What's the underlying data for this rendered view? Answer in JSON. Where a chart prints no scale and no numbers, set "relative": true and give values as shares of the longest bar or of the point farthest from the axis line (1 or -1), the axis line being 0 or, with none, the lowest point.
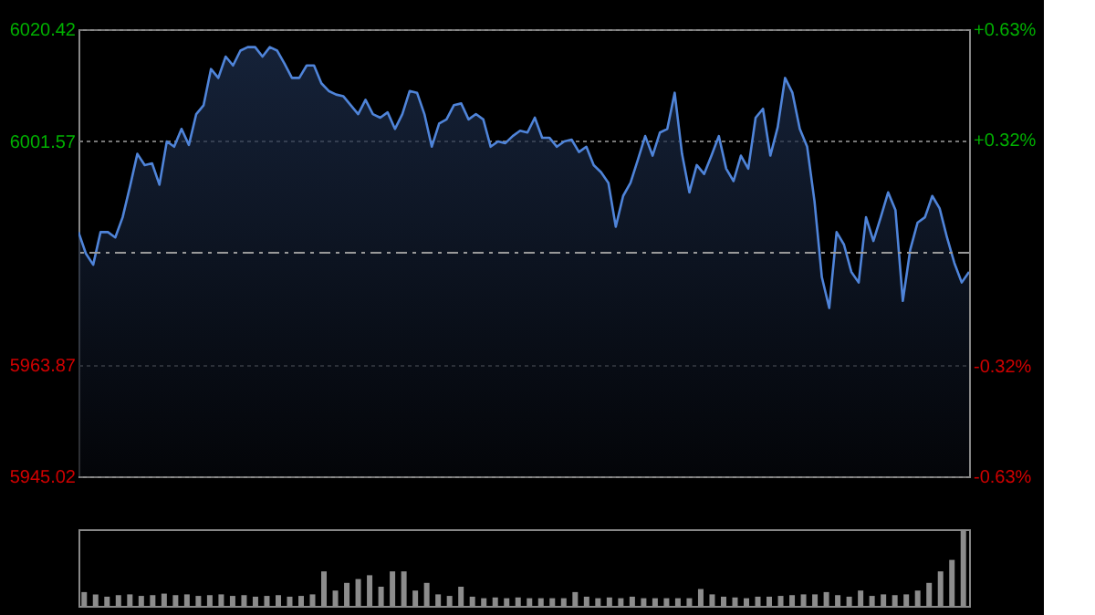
{
  "chart_data": [
    {
      "type": "area",
      "categories": [
        null,
        null,
        null,
        null,
        null,
        null,
        null,
        null,
        null,
        null,
        null,
        null,
        null,
        null,
        null,
        null,
        null,
        null,
        null,
        null,
        null,
        null,
        null,
        null,
        null,
        null,
        null,
        null,
        null,
        null,
        null,
        null,
        null,
        null,
        null,
        null,
        null,
        null,
        null,
        null,
        null,
        null,
        null,
        null,
        null,
        null,
        null,
        null,
        null,
        null,
        null,
        null,
        null,
        null,
        null,
        null,
        null,
        null,
        null,
        null,
        null,
        null,
        null,
        null,
        null,
        null,
        null,
        null,
        null,
        null,
        null,
        null,
        null,
        null,
        null,
        null,
        null,
        null,
        null,
        null,
        null,
        null,
        null,
        null,
        null,
        null,
        null,
        null,
        null,
        null,
        null,
        null,
        null,
        null,
        null,
        null,
        null,
        null,
        null,
        null,
        null,
        null,
        null,
        null,
        null,
        null,
        null,
        null,
        null,
        null,
        null,
        null,
        null,
        null,
        null,
        null,
        null,
        null,
        null,
        null,
        null,
        null
      ],
      "series": [
        {
          "color": "#4f84d9",
          "values": [
            5986.2,
            5982.6,
            5980.7,
            5986.2,
            5986.2,
            5985.3,
            5988.7,
            5993.9,
            5999.4,
            5997.5,
            5997.8,
            5994.2,
            6001.5,
            6000.6,
            6003.6,
            6000.9,
            6006.1,
            6007.6,
            6013.7,
            6012.2,
            6015.8,
            6014.3,
            6016.8,
            6017.4,
            6017.4,
            6015.8,
            6017.4,
            6016.8,
            6014.6,
            6012.2,
            6012.2,
            6014.3,
            6014.3,
            6011.3,
            6010.0,
            6009.4,
            6009.1,
            6007.6,
            6006.1,
            6008.5,
            6006.1,
            6005.5,
            6006.4,
            6003.6,
            6006.1,
            6010.0,
            6009.7,
            6006.1,
            6000.6,
            6004.5,
            6005.2,
            6007.6,
            6007.9,
            6005.2,
            6006.1,
            6005.2,
            6000.6,
            6001.5,
            6001.2,
            6002.4,
            6003.3,
            6003.0,
            6005.5,
            6002.1,
            6002.1,
            6000.6,
            6001.5,
            6001.8,
            5999.7,
            6000.6,
            5997.5,
            5996.3,
            5994.5,
            5987.1,
            5992.3,
            5994.5,
            5998.4,
            6002.4,
            5999.1,
            6003.0,
            6003.6,
            6009.7,
            5999.4,
            5992.9,
            5997.5,
            5996.0,
            5999.1,
            6002.4,
            5996.9,
            5994.8,
            5999.1,
            5996.9,
            6005.5,
            6007.0,
            5999.1,
            6003.9,
            6012.2,
            6009.7,
            6003.6,
            6000.6,
            5991.4,
            5978.6,
            5973.4,
            5986.2,
            5984.1,
            5979.5,
            5977.7,
            5988.7,
            5984.7,
            5988.7,
            5992.9,
            5989.9,
            5974.6,
            5983.2,
            5987.8,
            5988.7,
            5992.3,
            5990.2,
            5985.3,
            5981.0,
            5977.7,
            5979.5
          ]
        }
      ],
      "ylim": [
        5945.02,
        6020.42
      ],
      "yticks": [
        6020.42,
        6001.57,
        5963.87,
        5945.02
      ],
      "y2lim": [
        -0.63,
        0.63
      ],
      "y2ticks": [
        {
          "value": 0.63,
          "label": "+0.63%"
        },
        {
          "value": 0.32,
          "label": "+0.32%"
        },
        {
          "value": -0.32,
          "label": "-0.32%"
        },
        {
          "value": -0.63,
          "label": "-0.63%"
        }
      ],
      "ref_lines": [
        {
          "axis": "y",
          "value": 5982.72,
          "line_style": "dashed"
        }
      ],
      "grid": "y",
      "tick_labels": "y"
    },
    {
      "type": "bar",
      "relative": true,
      "categories": [
        null,
        null,
        null,
        null,
        null,
        null,
        null,
        null,
        null,
        null,
        null,
        null,
        null,
        null,
        null,
        null,
        null,
        null,
        null,
        null,
        null,
        null,
        null,
        null,
        null,
        null,
        null,
        null,
        null,
        null,
        null,
        null,
        null,
        null,
        null,
        null,
        null,
        null,
        null,
        null,
        null,
        null,
        null,
        null,
        null,
        null,
        null,
        null,
        null,
        null,
        null,
        null,
        null,
        null,
        null,
        null,
        null,
        null,
        null,
        null,
        null,
        null,
        null,
        null,
        null,
        null,
        null,
        null,
        null,
        null,
        null,
        null,
        null,
        null,
        null,
        null,
        null,
        null
      ],
      "series": [
        {
          "color": "#8c8c8c",
          "values": [
            0.18,
            0.15,
            0.12,
            0.14,
            0.15,
            0.13,
            0.14,
            0.16,
            0.14,
            0.15,
            0.13,
            0.14,
            0.15,
            0.13,
            0.14,
            0.12,
            0.13,
            0.14,
            0.12,
            0.13,
            0.15,
            0.45,
            0.2,
            0.3,
            0.35,
            0.4,
            0.25,
            0.45,
            0.45,
            0.2,
            0.3,
            0.15,
            0.13,
            0.25,
            0.12,
            0.1,
            0.11,
            0.1,
            0.11,
            0.1,
            0.1,
            0.1,
            0.1,
            0.18,
            0.12,
            0.1,
            0.11,
            0.1,
            0.12,
            0.1,
            0.1,
            0.1,
            0.1,
            0.1,
            0.22,
            0.15,
            0.12,
            0.11,
            0.1,
            0.12,
            0.12,
            0.13,
            0.14,
            0.15,
            0.15,
            0.18,
            0.14,
            0.12,
            0.2,
            0.13,
            0.15,
            0.14,
            0.15,
            0.2,
            0.3,
            0.45,
            0.6,
            1
          ]
        }
      ],
      "tick_labels": false
    }
  ]
}
